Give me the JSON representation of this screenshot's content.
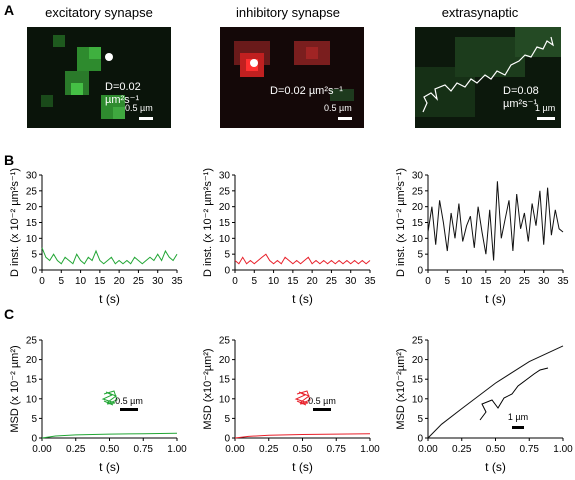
{
  "panels": {
    "A": "A",
    "B": "B",
    "C": "C"
  },
  "columns": [
    {
      "title": "excitatory synapse",
      "diffusion": "D=0.02 µm²s⁻¹",
      "scalebar": "0.5 µm",
      "color": "#22a635"
    },
    {
      "title": "inhibitory synapse",
      "diffusion": "D=0.02 µm²s⁻¹",
      "scalebar": "0.5 µm",
      "color": "#e8202a"
    },
    {
      "title": "extrasynaptic",
      "diffusion": "D=0.08 µm²s⁻¹",
      "scalebar": "1 µm",
      "color": "#111111"
    }
  ],
  "chart_data": [
    {
      "type": "line",
      "row": "B",
      "xlabel": "t (s)",
      "ylabel": "D inst. (x 10⁻² µm²s⁻¹)",
      "xlim": [
        0,
        35
      ],
      "ylim": [
        0,
        30
      ],
      "xticks": [
        0,
        5,
        10,
        15,
        20,
        25,
        30,
        35
      ],
      "yticks": [
        0,
        5,
        10,
        15,
        20,
        25,
        30
      ],
      "series": [
        {
          "x": [
            0,
            1,
            2,
            3,
            4,
            5,
            6,
            7,
            8,
            9,
            10,
            11,
            12,
            13,
            14,
            15,
            16,
            17,
            18,
            19,
            20,
            21,
            22,
            23,
            24,
            25,
            26,
            27,
            28,
            29,
            30,
            31,
            32,
            33,
            34,
            35
          ],
          "values": [
            7,
            4,
            3,
            5,
            3,
            2,
            4,
            3,
            2,
            5,
            3,
            2,
            4,
            3,
            6,
            3,
            2,
            3,
            4,
            2,
            3,
            2,
            3,
            2,
            4,
            3,
            2,
            3,
            4,
            3,
            5,
            3,
            6,
            4,
            3,
            5
          ]
        }
      ]
    },
    {
      "type": "line",
      "row": "B",
      "xlabel": "t (s)",
      "ylabel": "D inst. (x 10⁻² µm²s⁻¹)",
      "xlim": [
        0,
        35
      ],
      "ylim": [
        0,
        30
      ],
      "xticks": [
        0,
        5,
        10,
        15,
        20,
        25,
        30,
        35
      ],
      "yticks": [
        0,
        5,
        10,
        15,
        20,
        25,
        30
      ],
      "series": [
        {
          "x": [
            0,
            1,
            2,
            3,
            4,
            5,
            6,
            7,
            8,
            9,
            10,
            11,
            12,
            13,
            14,
            15,
            16,
            17,
            18,
            19,
            20,
            21,
            22,
            23,
            24,
            25,
            26,
            27,
            28,
            29,
            30,
            31,
            32,
            33,
            34,
            35
          ],
          "values": [
            3,
            2,
            4,
            2,
            3,
            2,
            3,
            4,
            5,
            3,
            2,
            3,
            2,
            4,
            3,
            2,
            3,
            2,
            3,
            4,
            2,
            3,
            2,
            3,
            2,
            3,
            2,
            3,
            2,
            3,
            2,
            3,
            2,
            3,
            2,
            3
          ]
        }
      ]
    },
    {
      "type": "line",
      "row": "B",
      "xlabel": "t (s)",
      "ylabel": "D inst. (x 10⁻² µm²s⁻¹)",
      "xlim": [
        0,
        35
      ],
      "ylim": [
        0,
        30
      ],
      "xticks": [
        0,
        5,
        10,
        15,
        20,
        25,
        30,
        35
      ],
      "yticks": [
        0,
        5,
        10,
        15,
        20,
        25,
        30
      ],
      "series": [
        {
          "x": [
            0,
            1,
            2,
            3,
            4,
            5,
            6,
            7,
            8,
            9,
            10,
            11,
            12,
            13,
            14,
            15,
            16,
            17,
            18,
            19,
            20,
            21,
            22,
            23,
            24,
            25,
            26,
            27,
            28,
            29,
            30,
            31,
            32,
            33,
            34,
            35
          ],
          "values": [
            12,
            20,
            8,
            22,
            15,
            6,
            18,
            10,
            21,
            9,
            14,
            17,
            7,
            20,
            12,
            5,
            19,
            3,
            28,
            10,
            16,
            22,
            6,
            24,
            13,
            18,
            9,
            21,
            14,
            25,
            8,
            26,
            11,
            19,
            13,
            12
          ]
        }
      ]
    },
    {
      "type": "line",
      "row": "C",
      "xlabel": "t (s)",
      "ylabel": "MSD (x 10⁻² µm²)",
      "xlim": [
        0,
        1
      ],
      "ylim": [
        0,
        25
      ],
      "xticks": [
        "0.00",
        "0.25",
        "0.50",
        "0.75",
        "1.00"
      ],
      "yticks": [
        0,
        5,
        10,
        15,
        20,
        25
      ],
      "series": [
        {
          "x": [
            0,
            0.1,
            0.25,
            0.5,
            0.75,
            1.0
          ],
          "values": [
            0,
            0.5,
            0.8,
            1.0,
            1.1,
            1.2
          ]
        }
      ]
    },
    {
      "type": "line",
      "row": "C",
      "xlabel": "t (s)",
      "ylabel": "MSD (x10⁻²µm²)",
      "xlim": [
        0,
        1
      ],
      "ylim": [
        0,
        25
      ],
      "xticks": [
        "0.00",
        "0.25",
        "0.50",
        "0.75",
        "1.00"
      ],
      "yticks": [
        0,
        5,
        10,
        15,
        20,
        25
      ],
      "series": [
        {
          "x": [
            0,
            0.1,
            0.25,
            0.5,
            0.75,
            1.0
          ],
          "values": [
            0,
            0.4,
            0.7,
            0.9,
            1.0,
            1.1
          ]
        }
      ]
    },
    {
      "type": "line",
      "row": "C",
      "xlabel": "t (s)",
      "ylabel": "MSD (x10⁻²µm²)",
      "xlim": [
        0,
        1
      ],
      "ylim": [
        0,
        25
      ],
      "xticks": [
        "0.00",
        "0.25",
        "0.50",
        "0.75",
        "1.00"
      ],
      "yticks": [
        0,
        5,
        10,
        15,
        20,
        25
      ],
      "series": [
        {
          "x": [
            0,
            0.1,
            0.25,
            0.5,
            0.75,
            1.0
          ],
          "values": [
            0,
            3.5,
            7.5,
            14,
            19.5,
            23.5
          ]
        }
      ]
    }
  ]
}
